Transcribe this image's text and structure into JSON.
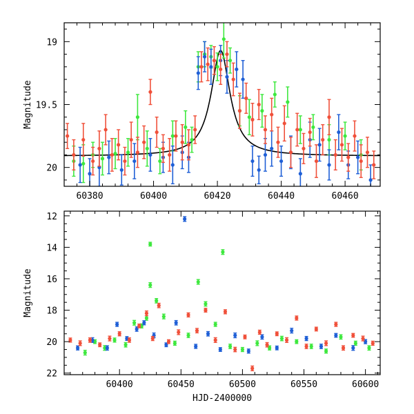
{
  "chart_data": [
    {
      "type": "scatter",
      "ylabel": "Magnitude",
      "xlabel": "",
      "xlim": [
        60372,
        60471
      ],
      "ylim": [
        20.15,
        18.85
      ],
      "y_inverted": true,
      "xticks": [
        60380,
        60400,
        60420,
        60440,
        60460
      ],
      "yticks": [
        19,
        19.5,
        20
      ],
      "ytick_labels": [
        "19",
        "19.5",
        "20"
      ],
      "grid": false,
      "legend": "none",
      "colors": {
        "green": "#3ee83e",
        "blue": "#1f5fd6",
        "red": "#f0503a",
        "model": "#000000"
      },
      "model_curve": {
        "name": "",
        "shape": "lorentzian",
        "peak_x": 60421,
        "peak_mag": 19.07,
        "baseline_mag": 19.91,
        "half_width_days": 3.6
      },
      "series": [
        {
          "name": "",
          "color": "green",
          "x": [
            60375,
            60378,
            60381,
            60384,
            60388,
            60392,
            60395,
            60398,
            60402,
            60406,
            60410,
            60412,
            60414,
            60416,
            60418,
            60420,
            60422,
            60424,
            60427,
            60430,
            60434,
            60438,
            60442,
            60446,
            60450,
            60455,
            60460,
            60465
          ],
          "y": [
            19.95,
            19.97,
            19.9,
            19.93,
            19.89,
            19.88,
            19.6,
            19.85,
            19.95,
            19.75,
            19.68,
            19.78,
            19.2,
            19.1,
            19.12,
            19.2,
            18.98,
            19.15,
            19.55,
            19.6,
            19.55,
            19.42,
            19.48,
            19.7,
            19.68,
            19.78,
            19.75,
            19.9
          ],
          "yerr": [
            0.12,
            0.15,
            0.1,
            0.13,
            0.12,
            0.11,
            0.18,
            0.14,
            0.1,
            0.12,
            0.13,
            0.1,
            0.12,
            0.1,
            0.09,
            0.11,
            0.15,
            0.1,
            0.12,
            0.14,
            0.13,
            0.1,
            0.12,
            0.11,
            0.1,
            0.12,
            0.11,
            0.12
          ]
        },
        {
          "name": "",
          "color": "blue",
          "x": [
            60377,
            60380,
            60383,
            60386,
            60390,
            60394,
            60399,
            60403,
            60406,
            60409,
            60411,
            60414,
            60416,
            60418,
            60421,
            60423,
            60426,
            60428,
            60431,
            60433,
            60435,
            60437,
            60440,
            60443,
            60446,
            60449,
            60452,
            60455,
            60458,
            60461,
            60464,
            60468
          ],
          "y": [
            19.98,
            20.05,
            20.0,
            19.92,
            20.02,
            19.95,
            19.9,
            19.92,
            19.98,
            19.88,
            19.92,
            19.25,
            19.12,
            19.2,
            19.15,
            19.28,
            19.22,
            19.3,
            19.95,
            20.02,
            19.9,
            19.85,
            19.95,
            19.88,
            20.05,
            19.78,
            19.82,
            19.98,
            19.72,
            19.98,
            19.92,
            20.1
          ],
          "yerr": [
            0.14,
            0.12,
            0.15,
            0.13,
            0.12,
            0.14,
            0.13,
            0.12,
            0.15,
            0.13,
            0.12,
            0.13,
            0.12,
            0.14,
            0.12,
            0.13,
            0.14,
            0.15,
            0.12,
            0.11,
            0.13,
            0.14,
            0.12,
            0.13,
            0.12,
            0.14,
            0.13,
            0.12,
            0.14,
            0.11,
            0.13,
            0.12
          ]
        },
        {
          "name": "",
          "color": "red",
          "x": [
            60373,
            60375,
            60378,
            60381,
            60383,
            60385,
            60387,
            60389,
            60391,
            60393,
            60395,
            60397,
            60399,
            60401,
            60403,
            60405,
            60407,
            60409,
            60411,
            60413,
            60415,
            60417,
            60419,
            60421,
            60423,
            60425,
            60427,
            60429,
            60431,
            60433,
            60435,
            60437,
            60439,
            60441,
            60443,
            60445,
            60447,
            60449,
            60451,
            60453,
            60455,
            60457,
            60459,
            60461,
            60463,
            60465,
            60467,
            60469
          ],
          "y": [
            19.75,
            19.9,
            19.78,
            19.95,
            19.85,
            19.7,
            19.9,
            19.82,
            19.95,
            19.78,
            19.88,
            19.8,
            19.4,
            19.72,
            19.85,
            19.9,
            19.75,
            19.8,
            19.82,
            19.7,
            19.2,
            19.18,
            19.15,
            19.22,
            19.1,
            19.3,
            19.55,
            19.45,
            19.62,
            19.5,
            19.7,
            19.58,
            19.8,
            19.65,
            19.88,
            19.7,
            19.85,
            19.72,
            19.95,
            19.78,
            19.6,
            19.9,
            19.82,
            19.92,
            19.75,
            19.95,
            19.88,
            19.98
          ],
          "yerr": [
            0.1,
            0.12,
            0.13,
            0.11,
            0.14,
            0.12,
            0.13,
            0.12,
            0.11,
            0.14,
            0.12,
            0.13,
            0.1,
            0.12,
            0.11,
            0.13,
            0.12,
            0.14,
            0.12,
            0.11,
            0.12,
            0.13,
            0.11,
            0.12,
            0.1,
            0.13,
            0.14,
            0.12,
            0.13,
            0.12,
            0.11,
            0.13,
            0.12,
            0.14,
            0.12,
            0.13,
            0.12,
            0.11,
            0.13,
            0.12,
            0.14,
            0.12,
            0.13,
            0.11,
            0.12,
            0.13,
            0.12,
            0.11
          ]
        }
      ]
    },
    {
      "type": "scatter",
      "ylabel": "Magnitude",
      "xlabel": "HJD-2400000",
      "xlim": [
        60355,
        60612
      ],
      "ylim": [
        22.1,
        11.7
      ],
      "y_inverted": true,
      "xticks": [
        60400,
        60450,
        60500,
        60550,
        60600
      ],
      "yticks": [
        12,
        14,
        16,
        18,
        20,
        22
      ],
      "ytick_labels": [
        "12",
        "14",
        "16",
        "18",
        "20",
        "22"
      ],
      "grid": false,
      "legend": "none",
      "colors": {
        "green": "#3ee83e",
        "blue": "#1f5fd6",
        "red": "#f0503a"
      },
      "baseline_mag": 20.0,
      "series": [
        {
          "name": "",
          "color": "green",
          "x": [
            60372,
            60380,
            60388,
            60396,
            60405,
            60412,
            60418,
            60422,
            60425,
            60425,
            60430,
            60436,
            60445,
            60456,
            60464,
            60470,
            60478,
            60484,
            60490,
            60500,
            60512,
            60522,
            60532,
            60544,
            60556,
            60568,
            60580,
            60592,
            60603
          ],
          "y": [
            20.7,
            20.0,
            20.4,
            19.9,
            20.2,
            18.8,
            19.0,
            18.5,
            16.4,
            13.8,
            17.4,
            18.4,
            20.1,
            19.6,
            16.2,
            17.6,
            18.9,
            14.3,
            20.3,
            20.5,
            20.1,
            20.4,
            19.8,
            20.0,
            20.3,
            20.6,
            19.7,
            20.1,
            20.4
          ],
          "yerr": [
            0.15,
            0.12,
            0.15,
            0.13,
            0.14,
            0.15,
            0.13,
            0.14,
            0.15,
            0.12,
            0.14,
            0.15,
            0.13,
            0.14,
            0.15,
            0.14,
            0.13,
            0.15,
            0.14,
            0.13,
            0.15,
            0.13,
            0.14,
            0.12,
            0.14,
            0.13,
            0.14,
            0.13,
            0.14
          ]
        },
        {
          "name": "",
          "color": "blue",
          "x": [
            60366,
            60378,
            60390,
            60398,
            60406,
            60414,
            60420,
            60428,
            60438,
            60446,
            60453,
            60462,
            60472,
            60482,
            60494,
            60505,
            60516,
            60528,
            60540,
            60552,
            60564,
            60576,
            60590,
            60600
          ],
          "y": [
            20.4,
            19.9,
            20.4,
            18.9,
            19.8,
            19.2,
            18.8,
            19.6,
            20.2,
            18.8,
            12.2,
            20.3,
            19.5,
            20.5,
            19.6,
            20.6,
            19.7,
            20.4,
            19.3,
            19.8,
            20.3,
            19.6,
            20.4,
            20.0
          ],
          "yerr": [
            0.13,
            0.15,
            0.14,
            0.13,
            0.12,
            0.14,
            0.13,
            0.15,
            0.12,
            0.14,
            0.15,
            0.13,
            0.14,
            0.12,
            0.15,
            0.13,
            0.14,
            0.12,
            0.15,
            0.13,
            0.14,
            0.12,
            0.15,
            0.13
          ]
        },
        {
          "name": "",
          "color": "red",
          "x": [
            60360,
            60368,
            60376,
            60384,
            60392,
            60400,
            60408,
            60416,
            60422,
            60427,
            60432,
            60440,
            60448,
            60456,
            60463,
            60470,
            60478,
            60486,
            60494,
            60502,
            60508,
            60514,
            60520,
            60528,
            60536,
            60544,
            60552,
            60560,
            60568,
            60576,
            60582,
            60590,
            60598,
            60606
          ],
          "y": [
            19.9,
            20.1,
            19.9,
            20.2,
            19.8,
            19.5,
            19.9,
            19.0,
            18.2,
            19.8,
            17.7,
            20.0,
            19.4,
            18.3,
            19.3,
            18.0,
            19.9,
            18.1,
            20.5,
            19.7,
            21.7,
            19.4,
            20.2,
            19.5,
            19.9,
            18.5,
            20.3,
            19.2,
            20.1,
            18.9,
            20.4,
            19.6,
            19.8,
            20.1
          ],
          "yerr": [
            0.13,
            0.15,
            0.14,
            0.12,
            0.15,
            0.13,
            0.14,
            0.12,
            0.15,
            0.13,
            0.14,
            0.12,
            0.15,
            0.13,
            0.14,
            0.12,
            0.15,
            0.13,
            0.14,
            0.12,
            0.15,
            0.13,
            0.14,
            0.12,
            0.15,
            0.13,
            0.14,
            0.12,
            0.15,
            0.13,
            0.14,
            0.12,
            0.15,
            0.13
          ]
        }
      ]
    }
  ]
}
